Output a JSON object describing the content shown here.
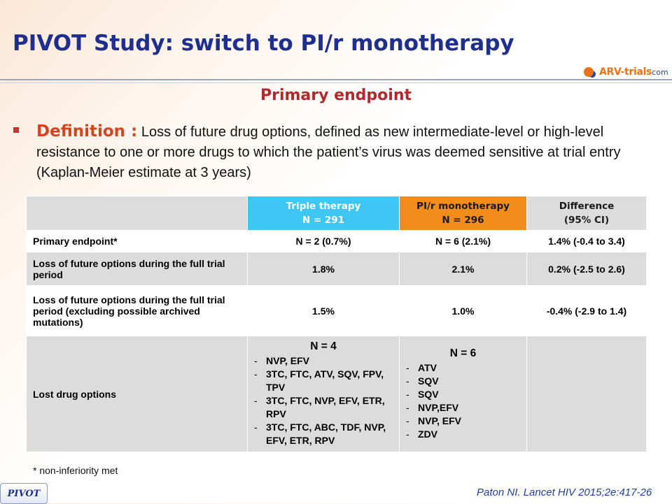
{
  "slide": {
    "title": "PIVOT Study: switch to PI/r monotherapy",
    "logo": {
      "main": "ARV-trials",
      "suffix": "com",
      "icon": "arv-logo-icon"
    },
    "subtitle": "Primary endpoint",
    "definition": {
      "label": "Definition :",
      "text": "Loss of future drug options, defined as new intermediate-level or high-level resistance to one or more drugs to which the patient’s virus was deemed sensitive at trial entry (Kaplan-Meier estimate at 3 years)"
    },
    "colors": {
      "title": "#1f2f8f",
      "subtitle": "#b2282d",
      "triple_header": "#3ec6f5",
      "pi_header": "#f28c1a",
      "row_gray": "#dcdcdc"
    }
  },
  "table": {
    "headers": [
      {
        "line1": "",
        "line2": ""
      },
      {
        "line1": "Triple therapy",
        "line2": "N = 291"
      },
      {
        "line1": "PI/r monotherapy",
        "line2": "N = 296"
      },
      {
        "line1": "Difference",
        "line2": "(95% CI)"
      }
    ],
    "rows": [
      {
        "label": "Primary endpoint*",
        "triple": "N = 2 (0.7%)",
        "pi": "N = 6 (2.1%)",
        "diff": "1.4% (-0.4 to 3.4)"
      },
      {
        "label": "Loss of future options during the full trial period",
        "triple": "1.8%",
        "pi": "2.1%",
        "diff": "0.2% (-2.5 to 2.6)"
      },
      {
        "label": "Loss of future options during the full trial period (excluding possible archived mutations)",
        "triple": "1.5%",
        "pi": "1.0%",
        "diff": "-0.4% (-2.9 to 1.4)"
      }
    ],
    "lost": {
      "label": "Lost drug options",
      "triple_n": "N = 4",
      "triple_items": [
        "NVP, EFV",
        "3TC, FTC, ATV, SQV, FPV, TPV",
        "3TC, FTC, NVP, EFV, ETR, RPV",
        "3TC, FTC, ABC, TDF, NVP, EFV, ETR, RPV"
      ],
      "pi_n": "N = 6",
      "pi_items": [
        "ATV",
        "SQV",
        "SQV",
        "NVP,EFV",
        "NVP, EFV",
        "ZDV"
      ],
      "diff": ""
    }
  },
  "footnote": "* non-inferiority met",
  "badge": "PIVOT",
  "citation": "Paton NI. Lancet HIV 2015;2e:417-26"
}
